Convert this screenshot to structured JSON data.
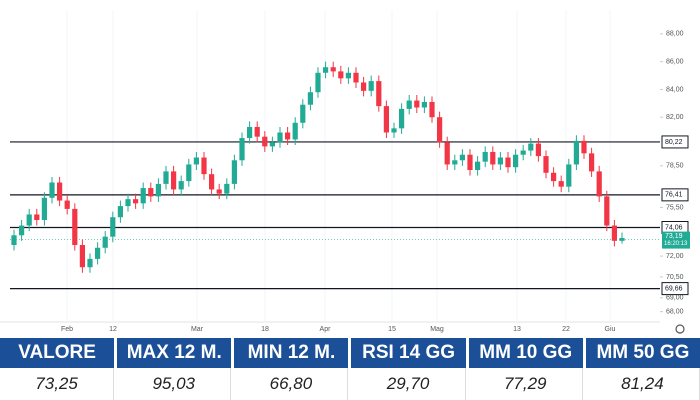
{
  "chart_data": {
    "type": "candlestick",
    "ylim": [
      67.4,
      89
    ],
    "yticks": [
      {
        "value": 88,
        "label": "88,00"
      },
      {
        "value": 86,
        "label": "86,00"
      },
      {
        "value": 84,
        "label": "84,00"
      },
      {
        "value": 82,
        "label": "82,00"
      },
      {
        "value": 78.5,
        "label": "78,50"
      },
      {
        "value": 75.5,
        "label": "75,50"
      },
      {
        "value": 72,
        "label": "72,00"
      },
      {
        "value": 70.5,
        "label": "70,50"
      },
      {
        "value": 69,
        "label": "69,00"
      },
      {
        "value": 68,
        "label": "68,00"
      }
    ],
    "x_labels": [
      "Feb",
      "12",
      "Mar",
      "18",
      "Apr",
      "15",
      "Mag",
      "13",
      "22",
      "Giu"
    ],
    "up_color": "#22ab94",
    "down_color": "#f23645",
    "open": [
      72.8,
      73.5,
      74.2,
      75.0,
      74.6,
      76.2,
      77.3,
      76.0,
      75.4,
      72.8,
      71.2,
      71.8,
      72.6,
      73.4,
      74.8,
      75.6,
      76.1,
      75.8,
      76.9,
      76.3,
      77.2,
      78.1,
      76.8,
      77.4,
      78.6,
      79.1,
      77.9,
      76.8,
      76.5,
      77.2,
      78.9,
      80.5,
      81.3,
      80.6,
      79.9,
      80.2,
      80.9,
      80.4,
      81.6,
      82.9,
      83.8,
      85.2,
      85.6,
      85.3,
      84.8,
      85.2,
      84.5,
      83.9,
      84.6,
      82.8,
      80.9,
      81.2,
      82.6,
      83.2,
      82.7,
      83.1,
      82.0,
      80.2,
      78.6,
      78.9,
      79.3,
      78.2,
      78.8,
      79.5,
      78.6,
      79.1,
      78.4,
      79.3,
      79.6,
      80.1,
      79.2,
      78.0,
      77.4,
      77.0,
      78.6,
      80.3,
      79.4,
      78.1,
      76.3,
      74.2,
      73.1
    ],
    "high": [
      73.9,
      74.6,
      75.4,
      75.4,
      76.6,
      77.7,
      77.7,
      76.4,
      75.8,
      73.2,
      72.2,
      73.0,
      73.8,
      75.2,
      76.0,
      76.5,
      76.5,
      77.3,
      77.3,
      77.6,
      78.5,
      78.5,
      77.8,
      79.0,
      79.5,
      79.5,
      78.3,
      77.2,
      77.6,
      79.3,
      80.9,
      81.7,
      81.7,
      81.0,
      80.6,
      81.3,
      81.3,
      82.0,
      83.3,
      84.2,
      85.6,
      86.0,
      86.0,
      85.7,
      85.6,
      85.6,
      84.9,
      85.0,
      85.0,
      83.2,
      81.6,
      83.0,
      83.6,
      83.6,
      83.5,
      83.5,
      82.4,
      80.6,
      79.3,
      79.7,
      79.7,
      79.2,
      79.9,
      79.9,
      79.5,
      79.5,
      79.7,
      80.0,
      80.5,
      80.5,
      79.6,
      78.4,
      77.8,
      79.0,
      80.7,
      80.7,
      79.8,
      78.5,
      76.7,
      74.6,
      73.7
    ],
    "low": [
      72.4,
      73.1,
      73.8,
      74.2,
      74.2,
      75.8,
      75.6,
      75.0,
      72.4,
      70.8,
      70.8,
      71.4,
      72.2,
      73.0,
      74.4,
      75.2,
      75.4,
      75.4,
      75.9,
      75.9,
      76.8,
      76.4,
      76.4,
      77.0,
      78.2,
      77.5,
      76.4,
      76.1,
      76.1,
      76.8,
      78.5,
      80.1,
      80.2,
      79.5,
      79.5,
      79.8,
      80.0,
      80.0,
      81.2,
      82.5,
      83.4,
      84.8,
      84.9,
      84.4,
      84.4,
      84.1,
      83.5,
      83.5,
      82.4,
      80.5,
      80.5,
      80.8,
      82.2,
      82.3,
      82.3,
      81.6,
      79.8,
      78.2,
      78.2,
      78.5,
      77.8,
      77.8,
      78.4,
      78.2,
      78.2,
      78.0,
      78.0,
      78.9,
      79.2,
      78.8,
      77.6,
      77.0,
      76.6,
      76.6,
      78.2,
      79.0,
      77.7,
      75.9,
      73.8,
      72.7,
      72.9
    ],
    "close": [
      73.5,
      74.2,
      75.0,
      74.6,
      76.2,
      77.3,
      76.0,
      75.4,
      72.8,
      71.2,
      71.8,
      72.6,
      73.4,
      74.8,
      75.6,
      76.1,
      75.8,
      76.9,
      76.3,
      77.2,
      78.1,
      76.8,
      77.4,
      78.6,
      79.1,
      77.9,
      76.8,
      76.5,
      77.2,
      78.9,
      80.5,
      81.3,
      80.6,
      79.9,
      80.2,
      80.9,
      80.4,
      81.6,
      82.9,
      83.8,
      85.2,
      85.6,
      85.3,
      84.8,
      85.2,
      84.5,
      83.9,
      84.6,
      82.8,
      80.9,
      81.2,
      82.6,
      83.2,
      82.7,
      83.1,
      82.0,
      80.2,
      78.6,
      78.9,
      79.3,
      78.2,
      78.8,
      79.5,
      78.6,
      79.1,
      78.4,
      79.3,
      79.6,
      80.1,
      79.2,
      78.0,
      77.4,
      77.0,
      78.6,
      80.3,
      79.4,
      78.1,
      76.3,
      74.2,
      73.1,
      73.3
    ],
    "levels": [
      {
        "value": 80.22,
        "label": "80,22"
      },
      {
        "value": 76.41,
        "label": "76,41"
      },
      {
        "value": 74.06,
        "label": "74,06"
      },
      {
        "value": 69.66,
        "label": "69,66"
      }
    ],
    "last_price": {
      "value": 73.19,
      "label": "73,19",
      "time": "16:20:13"
    }
  },
  "table": {
    "headers": [
      "VALORE",
      "MAX 12 M.",
      "MIN 12 M.",
      "RSI 14 GG",
      "MM 10 GG",
      "MM 50 GG"
    ],
    "values": [
      "73,25",
      "95,03",
      "66,80",
      "29,70",
      "77,29",
      "81,24"
    ]
  }
}
